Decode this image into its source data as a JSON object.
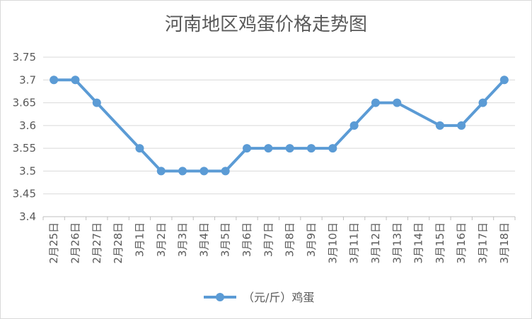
{
  "chart_data": {
    "type": "line",
    "title": "河南地区鸡蛋价格走势图",
    "categories": [
      "2月25日",
      "2月26日",
      "2月27日",
      "2月28日",
      "3月1日",
      "3月2日",
      "3月3日",
      "3月4日",
      "3月5日",
      "3月6日",
      "3月7日",
      "3月8日",
      "3月9日",
      "3月10日",
      "3月11日",
      "3月12日",
      "3月13日",
      "3月14日",
      "3月15日",
      "3月16日",
      "3月17日",
      "3月18日"
    ],
    "series": [
      {
        "name": "（元/斤）鸡蛋",
        "values": [
          3.7,
          3.7,
          3.65,
          null,
          3.55,
          3.5,
          3.5,
          3.5,
          3.5,
          3.55,
          3.55,
          3.55,
          3.55,
          3.55,
          3.6,
          3.65,
          3.65,
          null,
          3.6,
          3.6,
          3.65,
          3.7
        ],
        "color": "#5b9bd5"
      }
    ],
    "ylim": [
      3.4,
      3.75
    ],
    "yticks": [
      "3.4",
      "3.45",
      "3.5",
      "3.55",
      "3.6",
      "3.65",
      "3.7",
      "3.75"
    ],
    "ytick_values": [
      3.4,
      3.45,
      3.5,
      3.55,
      3.6,
      3.65,
      3.7,
      3.75
    ],
    "grid": true,
    "legend_position": "bottom"
  }
}
